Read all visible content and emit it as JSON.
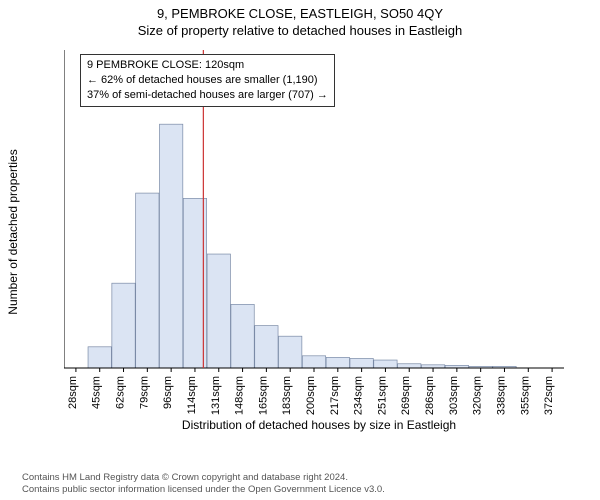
{
  "title_main": "9, PEMBROKE CLOSE, EASTLEIGH, SO50 4QY",
  "title_sub": "Size of property relative to detached houses in Eastleigh",
  "y_axis_label": "Number of detached properties",
  "x_axis_label": "Distribution of detached houses by size in Eastleigh",
  "copyright": "Contains HM Land Registry data © Crown copyright and database right 2024.\nContains public sector information licensed under the Open Government Licence v3.0.",
  "info_box": {
    "line1": "9 PEMBROKE CLOSE: 120sqm",
    "line2": "← 62% of detached houses are smaller (1,190)",
    "line3": "37% of semi-detached houses are larger (707) →"
  },
  "chart": {
    "type": "histogram",
    "ylim": [
      0,
      600
    ],
    "ytick_step": 50,
    "xticks": [
      "28sqm",
      "45sqm",
      "62sqm",
      "79sqm",
      "96sqm",
      "114sqm",
      "131sqm",
      "148sqm",
      "165sqm",
      "183sqm",
      "200sqm",
      "217sqm",
      "234sqm",
      "251sqm",
      "269sqm",
      "286sqm",
      "303sqm",
      "320sqm",
      "338sqm",
      "355sqm",
      "372sqm"
    ],
    "bar_values": [
      0,
      40,
      160,
      330,
      460,
      320,
      215,
      120,
      80,
      60,
      23,
      20,
      18,
      15,
      8,
      6,
      5,
      3,
      3,
      0,
      0
    ],
    "bar_color": "#dbe4f3",
    "bar_border_color": "#7a8aa6",
    "axis_color": "#000000",
    "marker_line_x_value": "120",
    "marker_line_color": "#cc3333",
    "background": "#ffffff",
    "title_fontsize": 13,
    "tick_fontsize": 11,
    "label_fontsize": 12
  }
}
